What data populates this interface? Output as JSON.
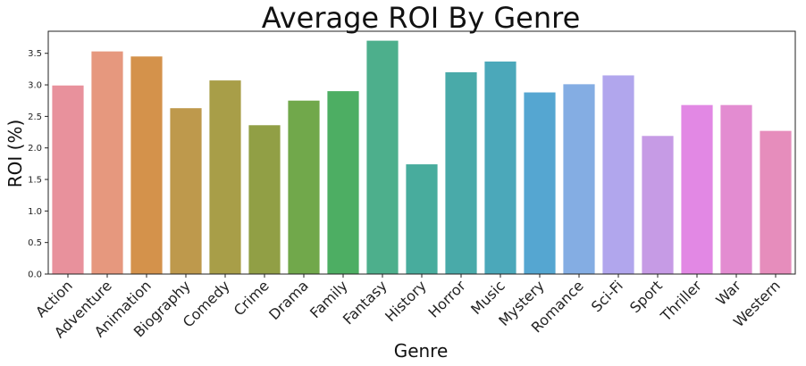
{
  "chart_data": {
    "type": "bar",
    "title": "Average ROI By Genre",
    "xlabel": "Genre",
    "ylabel": "ROI (%)",
    "ylim": [
      0,
      3.85
    ],
    "yticks": [
      "0.0",
      "0.5",
      "1.0",
      "1.5",
      "2.0",
      "2.5",
      "3.0",
      "3.5"
    ],
    "grid": false,
    "legend": "none",
    "categories": [
      "Action",
      "Adventure",
      "Animation",
      "Biography",
      "Comedy",
      "Crime",
      "Drama",
      "Family",
      "Fantasy",
      "History",
      "Horror",
      "Music",
      "Mystery",
      "Romance",
      "Sci-Fi",
      "Sport",
      "Thriller",
      "War",
      "Western"
    ],
    "values": [
      2.99,
      3.53,
      3.45,
      2.63,
      3.07,
      2.36,
      2.75,
      2.9,
      3.7,
      1.74,
      3.2,
      3.37,
      2.88,
      3.01,
      3.15,
      2.19,
      2.68,
      2.68,
      2.27
    ],
    "colors": [
      "#e8919c",
      "#e6987e",
      "#d4924b",
      "#be994c",
      "#a89e48",
      "#919f45",
      "#71a84b",
      "#4dae63",
      "#4daf8c",
      "#48ac9d",
      "#49aaa9",
      "#4ba8ba",
      "#55a6d1",
      "#84ade3",
      "#b1a6ed",
      "#c69be5",
      "#e288e4",
      "#e38cd1",
      "#e68dbc"
    ]
  }
}
